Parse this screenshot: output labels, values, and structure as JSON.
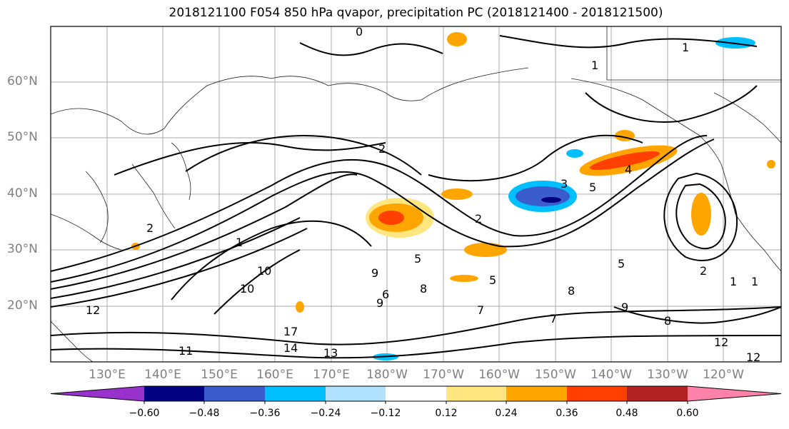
{
  "title": "2018121100 F054 850 hPa qvapor, precipitation PC (2018121400 - 2018121500)",
  "lat_labels": [
    "60°N",
    "50°N",
    "40°N",
    "30°N",
    "20°N"
  ],
  "lon_labels": [
    "130°E",
    "140°E",
    "150°E",
    "160°E",
    "170°E",
    "180°W",
    "170°W",
    "160°W",
    "150°W",
    "140°W",
    "130°W",
    "120°W"
  ],
  "colorbar": {
    "ticks": [
      "−0.60",
      "−0.48",
      "−0.36",
      "−0.24",
      "−0.12",
      "0.12",
      "0.24",
      "0.36",
      "0.48",
      "0.60"
    ],
    "colors": [
      "#9932cc",
      "#000080",
      "#3a5ccc",
      "#00bfff",
      "#b0e2ff",
      "#ffffff",
      "#ffe680",
      "#ffa500",
      "#ff4000",
      "#b22222",
      "#ff82ab"
    ]
  },
  "contour_labels": [
    "0",
    "1",
    "1",
    "2",
    "2",
    "2",
    "3",
    "4",
    "5",
    "5",
    "5",
    "5",
    "1",
    "7",
    "7",
    "9",
    "9",
    "6",
    "8",
    "8",
    "10",
    "10",
    "12",
    "12",
    "12",
    "13",
    "14",
    "17",
    "11",
    "9",
    "8",
    "1",
    "2",
    "1"
  ]
}
